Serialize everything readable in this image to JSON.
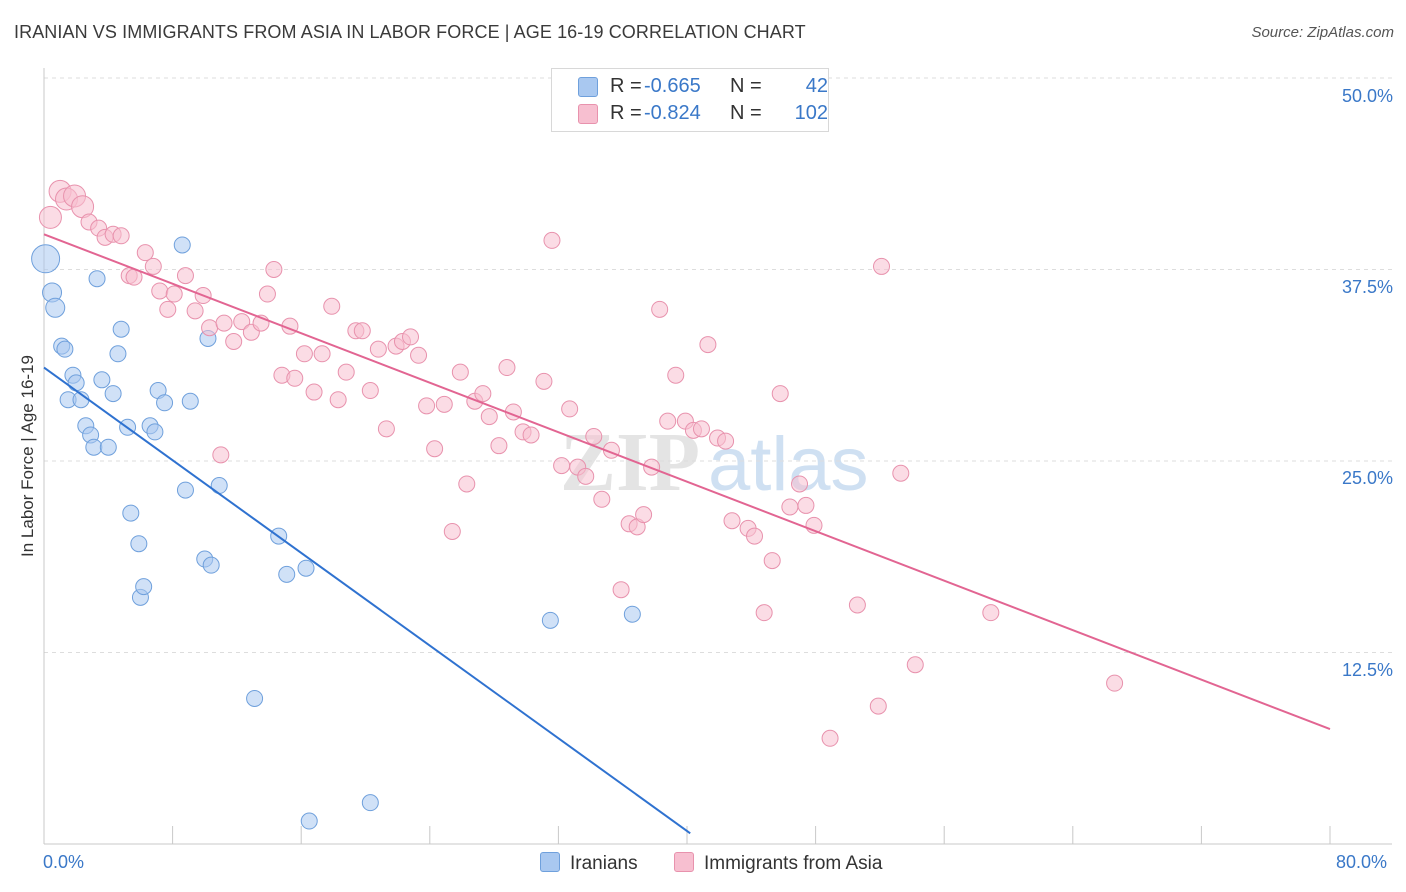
{
  "title": "IRANIAN VS IMMIGRANTS FROM ASIA IN LABOR FORCE | AGE 16-19 CORRELATION CHART",
  "source": "Source: ZipAtlas.com",
  "watermark": {
    "zip": "ZIP",
    "atlas": "atlas"
  },
  "legend": {
    "rows": [
      {
        "label": "R =",
        "r": "-0.665",
        "n_label": "N =",
        "n": "42",
        "color": "#a9c8f0",
        "border": "#6fa0dc"
      },
      {
        "label": "R =",
        "r": "-0.824",
        "n_label": "N =",
        "n": "102",
        "color": "#f7bfd0",
        "border": "#e892ad"
      }
    ]
  },
  "bottom_legend": [
    {
      "label": "Iranians",
      "color": "#a9c8f0",
      "border": "#6fa0dc"
    },
    {
      "label": "Immigrants from Asia",
      "color": "#f7bfd0",
      "border": "#e892ad"
    }
  ],
  "chart_data": {
    "type": "scatter",
    "xlabel": "",
    "ylabel": "In Labor Force | Age 16-19",
    "xlim": [
      0,
      80
    ],
    "ylim": [
      0,
      50
    ],
    "x_tick_labels": [
      "0.0%",
      "80.0%"
    ],
    "y_tick_labels": [
      "12.5%",
      "25.0%",
      "37.5%",
      "50.0%"
    ],
    "y_ticks": [
      12.5,
      25.0,
      37.5,
      50.0
    ],
    "grid": true,
    "series": [
      {
        "name": "Iranians",
        "color": "#6fa0dc",
        "fill": "#a9c8f0",
        "trend": {
          "x": [
            0,
            40.2
          ],
          "y": [
            31.1,
            0.7
          ],
          "color": "#2f72d0"
        },
        "points": [
          [
            0.1,
            38.2
          ],
          [
            0.5,
            36.0
          ],
          [
            0.7,
            35.0
          ],
          [
            1.1,
            32.5
          ],
          [
            1.3,
            32.3
          ],
          [
            1.8,
            30.6
          ],
          [
            2.0,
            30.1
          ],
          [
            1.5,
            29.0
          ],
          [
            2.3,
            29.0
          ],
          [
            2.6,
            27.3
          ],
          [
            2.9,
            26.7
          ],
          [
            3.1,
            25.9
          ],
          [
            3.3,
            36.9
          ],
          [
            3.6,
            30.3
          ],
          [
            4.0,
            25.9
          ],
          [
            4.3,
            29.4
          ],
          [
            4.6,
            32.0
          ],
          [
            4.8,
            33.6
          ],
          [
            5.2,
            27.2
          ],
          [
            5.4,
            21.6
          ],
          [
            5.9,
            19.6
          ],
          [
            6.0,
            16.1
          ],
          [
            6.2,
            16.8
          ],
          [
            6.6,
            27.3
          ],
          [
            6.9,
            26.9
          ],
          [
            7.1,
            29.6
          ],
          [
            7.5,
            28.8
          ],
          [
            8.6,
            39.1
          ],
          [
            8.8,
            23.1
          ],
          [
            9.1,
            28.9
          ],
          [
            10.0,
            18.6
          ],
          [
            10.2,
            33.0
          ],
          [
            10.4,
            18.2
          ],
          [
            10.9,
            23.4
          ],
          [
            13.1,
            9.5
          ],
          [
            14.6,
            20.1
          ],
          [
            15.1,
            17.6
          ],
          [
            16.3,
            18.0
          ],
          [
            16.5,
            1.5
          ],
          [
            20.3,
            2.7
          ],
          [
            31.5,
            14.6
          ],
          [
            36.6,
            15.0
          ]
        ]
      },
      {
        "name": "Immigrants from Asia",
        "color": "#e892ad",
        "fill": "#f7bfd0",
        "trend": {
          "x": [
            0,
            80
          ],
          "y": [
            39.8,
            7.5
          ],
          "color": "#e26592"
        },
        "points": [
          [
            0.4,
            40.9
          ],
          [
            1.0,
            42.6
          ],
          [
            1.4,
            42.1
          ],
          [
            1.9,
            42.3
          ],
          [
            2.4,
            41.6
          ],
          [
            2.8,
            40.6
          ],
          [
            3.4,
            40.2
          ],
          [
            3.8,
            39.6
          ],
          [
            4.3,
            39.8
          ],
          [
            4.8,
            39.7
          ],
          [
            5.3,
            37.1
          ],
          [
            5.6,
            37.0
          ],
          [
            6.3,
            38.6
          ],
          [
            6.8,
            37.7
          ],
          [
            7.2,
            36.1
          ],
          [
            7.7,
            34.9
          ],
          [
            8.1,
            35.9
          ],
          [
            8.8,
            37.1
          ],
          [
            9.4,
            34.8
          ],
          [
            9.9,
            35.8
          ],
          [
            10.3,
            33.7
          ],
          [
            11.0,
            25.4
          ],
          [
            11.2,
            34.0
          ],
          [
            11.8,
            32.8
          ],
          [
            12.3,
            34.1
          ],
          [
            12.9,
            33.4
          ],
          [
            13.5,
            34.0
          ],
          [
            13.9,
            35.9
          ],
          [
            14.3,
            37.5
          ],
          [
            14.8,
            30.6
          ],
          [
            15.3,
            33.8
          ],
          [
            15.6,
            30.4
          ],
          [
            16.2,
            32.0
          ],
          [
            16.8,
            29.5
          ],
          [
            17.3,
            32.0
          ],
          [
            17.9,
            35.1
          ],
          [
            18.3,
            29.0
          ],
          [
            18.8,
            30.8
          ],
          [
            19.4,
            33.5
          ],
          [
            19.8,
            33.5
          ],
          [
            20.3,
            29.6
          ],
          [
            20.8,
            32.3
          ],
          [
            21.3,
            27.1
          ],
          [
            21.9,
            32.5
          ],
          [
            22.3,
            32.8
          ],
          [
            22.8,
            33.1
          ],
          [
            23.3,
            31.9
          ],
          [
            23.8,
            28.6
          ],
          [
            24.3,
            25.8
          ],
          [
            24.9,
            28.7
          ],
          [
            25.4,
            20.4
          ],
          [
            25.9,
            30.8
          ],
          [
            26.3,
            23.5
          ],
          [
            26.8,
            28.9
          ],
          [
            27.3,
            29.4
          ],
          [
            27.7,
            27.9
          ],
          [
            28.3,
            26.0
          ],
          [
            28.8,
            31.1
          ],
          [
            29.2,
            28.2
          ],
          [
            29.8,
            26.9
          ],
          [
            30.3,
            26.7
          ],
          [
            31.1,
            30.2
          ],
          [
            31.6,
            39.4
          ],
          [
            32.2,
            24.7
          ],
          [
            32.7,
            28.4
          ],
          [
            33.2,
            24.6
          ],
          [
            33.7,
            24.0
          ],
          [
            34.2,
            26.6
          ],
          [
            34.7,
            22.5
          ],
          [
            35.3,
            25.7
          ],
          [
            35.9,
            16.6
          ],
          [
            36.4,
            20.9
          ],
          [
            36.9,
            20.7
          ],
          [
            37.3,
            21.5
          ],
          [
            37.8,
            24.6
          ],
          [
            38.3,
            34.9
          ],
          [
            38.8,
            27.6
          ],
          [
            39.3,
            30.6
          ],
          [
            39.9,
            27.6
          ],
          [
            40.4,
            27.0
          ],
          [
            40.9,
            27.1
          ],
          [
            41.3,
            32.6
          ],
          [
            41.9,
            26.5
          ],
          [
            42.4,
            26.3
          ],
          [
            42.8,
            21.1
          ],
          [
            43.8,
            20.6
          ],
          [
            44.2,
            20.1
          ],
          [
            44.8,
            15.1
          ],
          [
            45.3,
            18.5
          ],
          [
            45.8,
            29.4
          ],
          [
            46.4,
            22.0
          ],
          [
            47.0,
            23.5
          ],
          [
            47.4,
            22.1
          ],
          [
            47.9,
            20.8
          ],
          [
            48.9,
            6.9
          ],
          [
            50.6,
            15.6
          ],
          [
            52.1,
            37.7
          ],
          [
            51.9,
            9.0
          ],
          [
            53.3,
            24.2
          ],
          [
            54.2,
            11.7
          ],
          [
            58.9,
            15.1
          ],
          [
            66.6,
            10.5
          ]
        ]
      }
    ]
  }
}
